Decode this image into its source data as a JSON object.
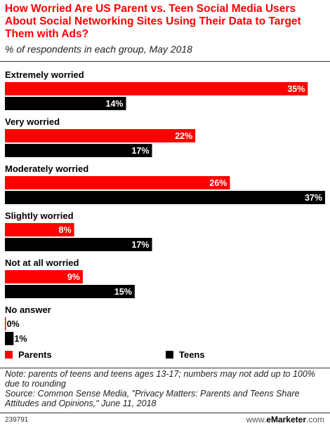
{
  "header": {
    "title": "How Worried Are US Parent vs. Teen Social Media Users About Social Networking Sites Using Their Data to Target Them with Ads?",
    "subtitle": "% of respondents in each group, May 2018"
  },
  "chart_data": {
    "type": "bar",
    "orientation": "horizontal",
    "categories": [
      "Extremely worried",
      "Very worried",
      "Moderately worried",
      "Slightly worried",
      "Not at all worried",
      "No answer"
    ],
    "series": [
      {
        "name": "Parents",
        "color": "#ff0000",
        "values": [
          35,
          22,
          26,
          8,
          9,
          0
        ]
      },
      {
        "name": "Teens",
        "color": "#000000",
        "values": [
          14,
          17,
          37,
          17,
          15,
          1
        ]
      }
    ],
    "value_suffix": "%",
    "xlim": [
      0,
      37
    ],
    "grid": false,
    "legend_position": "bottom-left"
  },
  "legend": {
    "parents_label": "Parents",
    "teens_label": "Teens"
  },
  "footnote": {
    "note": "Note: parents of teens and teens ages 13-17; numbers may not add up to 100% due to rounding",
    "source": "Source: Common Sense Media, \"Privacy Matters: Parents and Teens Share Attitudes and Opinions,\" June 11, 2018"
  },
  "footer": {
    "chart_id": "239791",
    "brand_prefix": "www.",
    "brand_name": "eMarketer",
    "brand_suffix": ".com"
  }
}
